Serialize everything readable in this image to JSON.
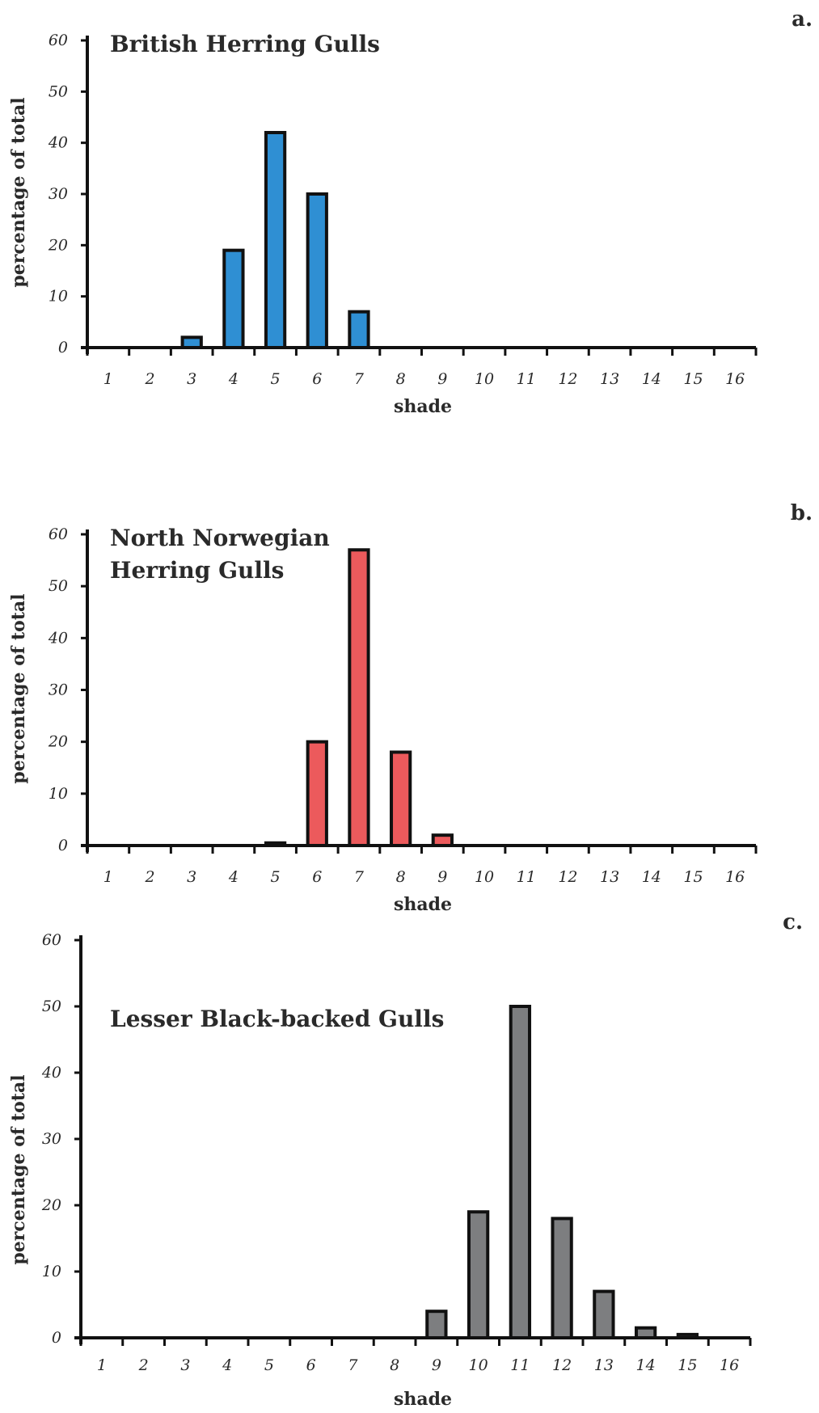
{
  "chart_data": [
    {
      "type": "bar",
      "panel": "a.",
      "title": "British Herring Gulls",
      "xlabel": "shade",
      "ylabel": "percentage of total",
      "ylim": [
        0,
        60
      ],
      "yticks": [
        0,
        10,
        20,
        30,
        40,
        50,
        60
      ],
      "categories": [
        "1",
        "2",
        "3",
        "4",
        "5",
        "6",
        "7",
        "8",
        "9",
        "10",
        "11",
        "12",
        "13",
        "14",
        "15",
        "16"
      ],
      "values": [
        0,
        0,
        2,
        19,
        42,
        30,
        7,
        0,
        0,
        0,
        0,
        0,
        0,
        0,
        0,
        0
      ],
      "color": "#2f8fd3",
      "grid": false
    },
    {
      "type": "bar",
      "panel": "b.",
      "title": "North Norwegian Herring Gulls",
      "title_lines": [
        "North Norwegian",
        "Herring Gulls"
      ],
      "xlabel": "shade",
      "ylabel": "percentage of total",
      "ylim": [
        0,
        60
      ],
      "yticks": [
        0,
        10,
        20,
        30,
        40,
        50,
        60
      ],
      "categories": [
        "1",
        "2",
        "3",
        "4",
        "5",
        "6",
        "7",
        "8",
        "9",
        "10",
        "11",
        "12",
        "13",
        "14",
        "15",
        "16"
      ],
      "values": [
        0,
        0,
        0,
        0,
        0.5,
        20,
        57,
        18,
        2,
        0,
        0,
        0,
        0,
        0,
        0,
        0
      ],
      "color": "#ec5a5c",
      "grid": false
    },
    {
      "type": "bar",
      "panel": "c.",
      "title": "Lesser Black-backed Gulls",
      "xlabel": "shade",
      "ylabel": "percentage of total",
      "ylim": [
        0,
        60
      ],
      "yticks": [
        0,
        10,
        20,
        30,
        40,
        50,
        60
      ],
      "categories": [
        "1",
        "2",
        "3",
        "4",
        "5",
        "6",
        "7",
        "8",
        "9",
        "10",
        "11",
        "12",
        "13",
        "14",
        "15",
        "16"
      ],
      "values": [
        0,
        0,
        0,
        0,
        0,
        0,
        0,
        0,
        4,
        19,
        50,
        18,
        7,
        1.5,
        0.5,
        0
      ],
      "color": "#7d7e80",
      "grid": false
    }
  ]
}
